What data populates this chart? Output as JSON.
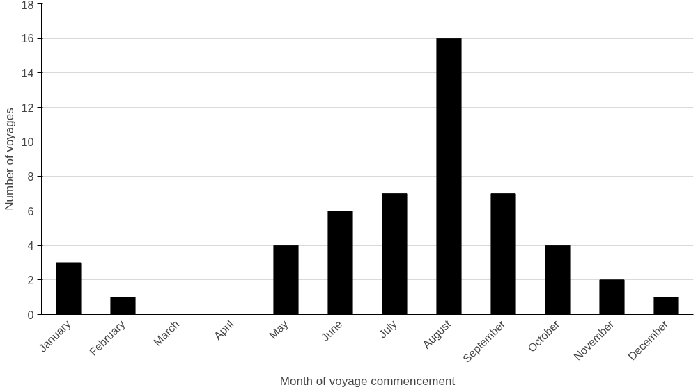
{
  "chart_data": {
    "type": "bar",
    "xlabel": "Month of voyage commencement",
    "ylabel": "Number of voyages",
    "categories": [
      "January",
      "February",
      "March",
      "April",
      "May",
      "June",
      "July",
      "August",
      "September",
      "October",
      "November",
      "December"
    ],
    "values": [
      3,
      1,
      0,
      0,
      4,
      6,
      7,
      16,
      7,
      4,
      2,
      1
    ],
    "color": "#000000",
    "ylim": [
      0,
      18
    ],
    "yticks": [
      0,
      2,
      4,
      6,
      8,
      10,
      12,
      14,
      16,
      18
    ],
    "grid": "y"
  }
}
